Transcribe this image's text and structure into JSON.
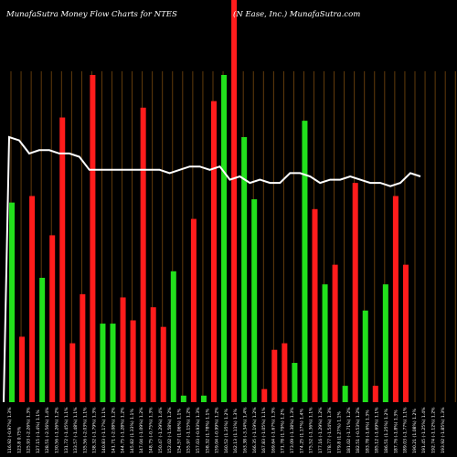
{
  "header": {
    "left": "MunafaSutra  Money Flow  Charts for NTES",
    "right": "(N  Ease,  Inc.) MunafaSutra.com"
  },
  "chart_data": {
    "type": "bar",
    "title": "MunafaSutra  Money Flow  Charts for NTES",
    "subtitle": "(N  Ease,  Inc.) MunafaSutra.com",
    "colors": {
      "up": "#22e01c",
      "down": "#ff1c1c",
      "line": "#ffffff",
      "grid": "#7a4a0e",
      "background": "#000000"
    },
    "categories": [
      "116.92 (-0.97%) 1.3%",
      "123.8 0.75%",
      "125.93 (-2.26%) 1.3%",
      "127.15 (-1.4%) 1.1%",
      "128.51 (-2.56%) 1.4%",
      "130.56 (-1.26%) 1.2%",
      "131.72 (-1.45%) 1.1%",
      "133.57 (-1.48%) 1.1%",
      "135.56 (-2.03%) 1.1%",
      "138.32 (-1.79%) 1.3%",
      "140.83 (-1.17%) 1.1%",
      "141.71 (-2.08%) 1.2%",
      "144.75 (-1.28%) 1.2%",
      "145.82 (1.33%) 1.1%",
      "147.04 (-1.09%) 1.2%",
      "148.75 (-0.75%) 1.3%",
      "150.47 (-1.29%) 1.4%",
      "152.02 (-1.58%) 1.2%",
      "154.57 (1.06%) 1.1%",
      "155.97 (-1.15%) 1.2%",
      "157.03 (-0.93%) 1.3%",
      "158.32 (1.78%) 1.1%",
      "159.04 (-0.99%) 1.2%",
      "160.52 (1.35%) 1.2%",
      "162.13 (1.11%) 1.3%",
      "163.38 (-3.34%) 1.4%",
      "166.35 (-1.19%) 1.2%",
      "167.83 (-1.05%) 1.1%",
      "169.64 (-1.67%) 1.3%",
      "171.78 (1.79%) 1.2%",
      "173.09 (-1.38%) 1.3%",
      "174.25 (1.17%) 1.4%",
      "175.52 (-1.36%) 1.1%",
      "177.16 (-1.29%) 1.2%",
      "178.77 (-1.54%) 1.3%",
      "179.8 (1.27%) 1.1%",
      "181.02 (-1.71%) 1.2%",
      "182.51 (-0.53%) 1.2%",
      "183.78 (-1.6%) 1.3%",
      "185.12 (-1.69%) 1.1%",
      "186.51 (1.25%) 1.2%",
      "187.76 (-1.8%) 1.3%",
      "189.03 (-1.77%) 1.1%",
      "190.21 (1.08%) 1.2%",
      "191.45 (-1.25%) 1.4%",
      "192.74 (-1.12%) 1.2%",
      "193.92 (-1.85%) 1.3%"
    ],
    "bars": [
      {
        "color": "green",
        "value": 61
      },
      {
        "color": "red",
        "value": 20
      },
      {
        "color": "red",
        "value": 63
      },
      {
        "color": "green",
        "value": 38
      },
      {
        "color": "red",
        "value": 51
      },
      {
        "color": "red",
        "value": 87
      },
      {
        "color": "red",
        "value": 18
      },
      {
        "color": "red",
        "value": 33
      },
      {
        "color": "red",
        "value": 100
      },
      {
        "color": "green",
        "value": 24
      },
      {
        "color": "green",
        "value": 24
      },
      {
        "color": "red",
        "value": 32
      },
      {
        "color": "red",
        "value": 25
      },
      {
        "color": "red",
        "value": 90
      },
      {
        "color": "red",
        "value": 29
      },
      {
        "color": "red",
        "value": 23
      },
      {
        "color": "green",
        "value": 40
      },
      {
        "color": "green",
        "value": 2
      },
      {
        "color": "red",
        "value": 56
      },
      {
        "color": "green",
        "value": 2
      },
      {
        "color": "red",
        "value": 92
      },
      {
        "color": "green",
        "value": 100
      },
      {
        "color": "red",
        "value": 128
      },
      {
        "color": "green",
        "value": 81
      },
      {
        "color": "green",
        "value": 62
      },
      {
        "color": "red",
        "value": 4
      },
      {
        "color": "red",
        "value": 16
      },
      {
        "color": "red",
        "value": 18
      },
      {
        "color": "green",
        "value": 12
      },
      {
        "color": "green",
        "value": 86
      },
      {
        "color": "red",
        "value": 59
      },
      {
        "color": "green",
        "value": 36
      },
      {
        "color": "red",
        "value": 42
      },
      {
        "color": "green",
        "value": 5
      },
      {
        "color": "red",
        "value": 67
      },
      {
        "color": "green",
        "value": 28
      },
      {
        "color": "red",
        "value": 5
      },
      {
        "color": "green",
        "value": 36
      },
      {
        "color": "red",
        "value": 63
      },
      {
        "color": "red",
        "value": 42
      }
    ],
    "line": [
      81,
      80,
      76,
      77,
      77,
      76,
      76,
      75,
      71,
      71,
      71,
      71,
      71,
      71,
      71,
      71,
      70,
      71,
      72,
      72,
      71,
      72,
      68,
      69,
      67,
      68,
      67,
      67,
      70,
      70,
      69,
      67,
      68,
      68,
      69,
      68,
      67,
      67,
      66,
      67,
      70,
      69
    ]
  }
}
